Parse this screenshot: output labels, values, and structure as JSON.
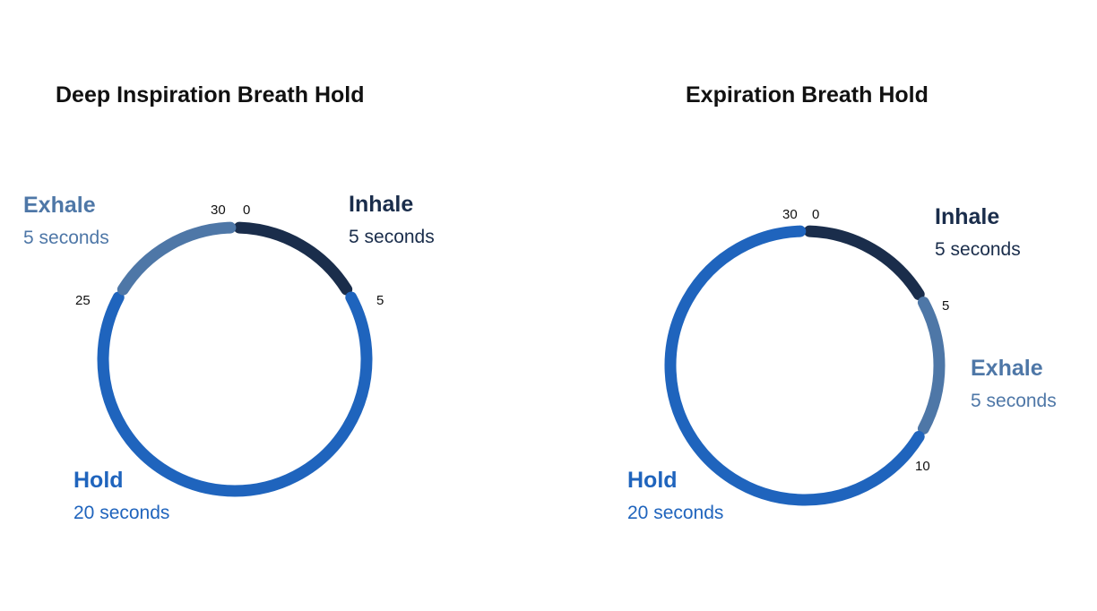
{
  "colors": {
    "inhale": "#1a2d4b",
    "hold": "#1f64bd",
    "exhale": "#4e77a7",
    "tick_text": "#111111",
    "title_text": "#111111"
  },
  "diagrams": [
    {
      "title": "Deep Inspiration Breath Hold",
      "total": 30,
      "segments": [
        {
          "name": "Inhale",
          "duration": "5 seconds",
          "start": 0,
          "end": 5,
          "color": "#1a2d4b"
        },
        {
          "name": "Hold",
          "duration": "20 seconds",
          "start": 5,
          "end": 25,
          "color": "#1f64bd"
        },
        {
          "name": "Exhale",
          "duration": "5 seconds",
          "start": 25,
          "end": 30,
          "color": "#4e77a7"
        }
      ],
      "ticks": [
        "30",
        "0",
        "5",
        "25"
      ]
    },
    {
      "title": "Expiration Breath Hold",
      "total": 30,
      "segments": [
        {
          "name": "Inhale",
          "duration": "5 seconds",
          "start": 0,
          "end": 5,
          "color": "#1a2d4b"
        },
        {
          "name": "Exhale",
          "duration": "5 seconds",
          "start": 5,
          "end": 10,
          "color": "#4e77a7"
        },
        {
          "name": "Hold",
          "duration": "20 seconds",
          "start": 10,
          "end": 30,
          "color": "#1f64bd"
        }
      ],
      "ticks": [
        "30",
        "0",
        "5",
        "10"
      ]
    }
  ]
}
